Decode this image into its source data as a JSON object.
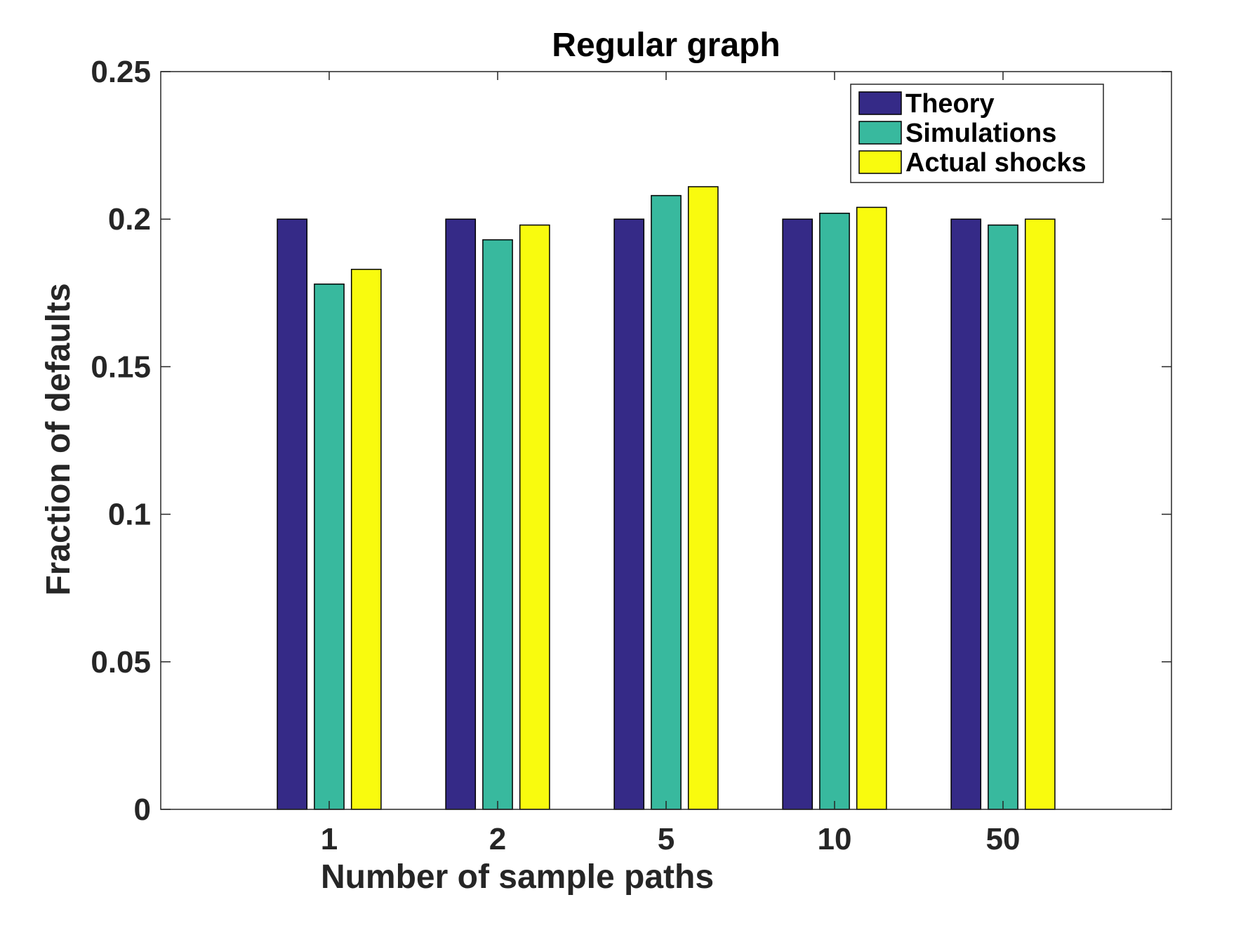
{
  "chart_data": {
    "type": "bar",
    "title": "Regular graph",
    "xlabel": "Number of sample paths",
    "ylabel": "Fraction of defaults",
    "categories": [
      "1",
      "2",
      "5",
      "10",
      "50"
    ],
    "ylim": [
      0,
      0.25
    ],
    "yticks": [
      0,
      0.05,
      0.1,
      0.15,
      0.2,
      0.25
    ],
    "ytick_labels": [
      "0",
      "0.05",
      "0.1",
      "0.15",
      "0.2",
      "0.25"
    ],
    "grid": false,
    "legend_position": "top-right",
    "series": [
      {
        "name": "Theory",
        "color": "#352a87",
        "values": [
          0.2,
          0.2,
          0.2,
          0.2,
          0.2
        ]
      },
      {
        "name": "Simulations",
        "color": "#38b99e",
        "values": [
          0.178,
          0.193,
          0.208,
          0.202,
          0.198
        ]
      },
      {
        "name": "Actual shocks",
        "color": "#f9fb0e",
        "values": [
          0.183,
          0.198,
          0.211,
          0.204,
          0.2
        ]
      }
    ]
  }
}
